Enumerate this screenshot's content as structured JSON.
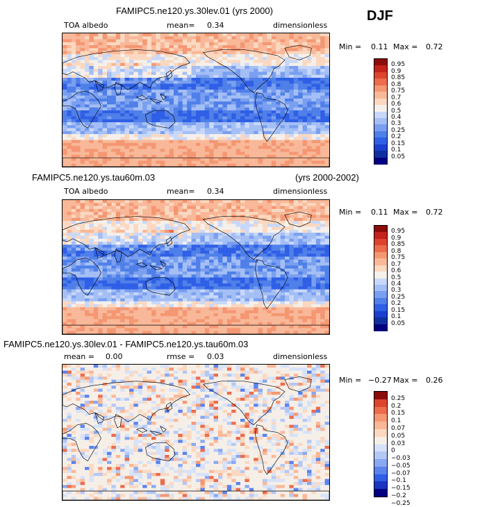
{
  "season": "DJF",
  "colors": {
    "abs_scale": [
      "#000080",
      "#1030a0",
      "#1a3fd0",
      "#2f5fe6",
      "#4f7fe8",
      "#7a9ff0",
      "#a4bff5",
      "#c8d8fa",
      "#f5f0ea",
      "#fbd8c0",
      "#f9b898",
      "#f59772",
      "#ec6c4c",
      "#dd4430",
      "#c4221c",
      "#8c0b0b"
    ],
    "diff_scale": [
      "#000080",
      "#1a36c0",
      "#2f5fe6",
      "#5a83ec",
      "#88a8f2",
      "#b4c8f6",
      "#d6e2fa",
      "#f6efe8",
      "#fbd8c0",
      "#f9b898",
      "#f59772",
      "#ec6c4c",
      "#dd4430",
      "#8c0b0b"
    ],
    "land_line": "#000000"
  },
  "panels": [
    {
      "title": "FAMIPC5.ne120.ys.30lev.01 (yrs 2000)",
      "title_right": "",
      "left_label": "TOA albedo",
      "mean_label": "mean=",
      "mean_value": "0.34",
      "rmse_label": "",
      "rmse_value": "",
      "units": "dimensionless",
      "min_label": "Min =",
      "min_value": "0.11",
      "max_label": "Max =",
      "max_value": "0.72",
      "colorbar": [
        "0.95",
        "0.9",
        "0.85",
        "0.8",
        "0.75",
        "0.7",
        "0.6",
        "0.5",
        "0.4",
        "0.3",
        "0.25",
        "0.2",
        "0.15",
        "0.1",
        "0.05"
      ]
    },
    {
      "title": "FAMIPC5.ne120.ys.tau60m.03",
      "title_right": "(yrs 2000-2002)",
      "left_label": "TOA albedo",
      "mean_label": "mean=",
      "mean_value": "0.34",
      "rmse_label": "",
      "rmse_value": "",
      "units": "dimensionless",
      "min_label": "Min =",
      "min_value": "0.11",
      "max_label": "Max =",
      "max_value": "0.72",
      "colorbar": [
        "0.95",
        "0.9",
        "0.85",
        "0.8",
        "0.75",
        "0.7",
        "0.6",
        "0.5",
        "0.4",
        "0.3",
        "0.25",
        "0.2",
        "0.15",
        "0.1",
        "0.05"
      ]
    },
    {
      "title": "FAMIPC5.ne120.ys.30lev.01 - FAMIPC5.ne120.ys.tau60m.03",
      "title_right": "",
      "left_label": "mean =",
      "mean_label": "",
      "mean_value": "0.00",
      "rmse_label": "rmse =",
      "rmse_value": "0.03",
      "units": "dimensionless",
      "min_label": "Min =",
      "min_value": "−0.27",
      "max_label": "Max =",
      "max_value": "0.26",
      "colorbar": [
        "0.25",
        "0.2",
        "0.15",
        "0.1",
        "0.07",
        "0.05",
        "0.03",
        "0",
        "−0.03",
        "−0.05",
        "−0.07",
        "−0.1",
        "−0.15",
        "−0.2",
        "−0.25"
      ]
    }
  ],
  "chart_data": [
    {
      "type": "heatmap",
      "title": "FAMIPC5.ne120.ys.30lev.01 (yrs 2000)",
      "variable": "TOA albedo",
      "units": "dimensionless",
      "mean": 0.34,
      "min": 0.11,
      "max": 0.72,
      "levels": [
        0.05,
        0.1,
        0.15,
        0.2,
        0.25,
        0.3,
        0.4,
        0.5,
        0.6,
        0.7,
        0.75,
        0.8,
        0.85,
        0.9,
        0.95
      ]
    },
    {
      "type": "heatmap",
      "title": "FAMIPC5.ne120.ys.tau60m.03 (yrs 2000-2002)",
      "variable": "TOA albedo",
      "units": "dimensionless",
      "mean": 0.34,
      "min": 0.11,
      "max": 0.72,
      "levels": [
        0.05,
        0.1,
        0.15,
        0.2,
        0.25,
        0.3,
        0.4,
        0.5,
        0.6,
        0.7,
        0.75,
        0.8,
        0.85,
        0.9,
        0.95
      ]
    },
    {
      "type": "heatmap",
      "title": "FAMIPC5.ne120.ys.30lev.01 - FAMIPC5.ne120.ys.tau60m.03",
      "units": "dimensionless",
      "mean": 0.0,
      "rmse": 0.03,
      "min": -0.27,
      "max": 0.26,
      "levels": [
        -0.25,
        -0.2,
        -0.15,
        -0.1,
        -0.07,
        -0.05,
        -0.03,
        0,
        0.03,
        0.05,
        0.07,
        0.1,
        0.15,
        0.2,
        0.25
      ]
    }
  ]
}
